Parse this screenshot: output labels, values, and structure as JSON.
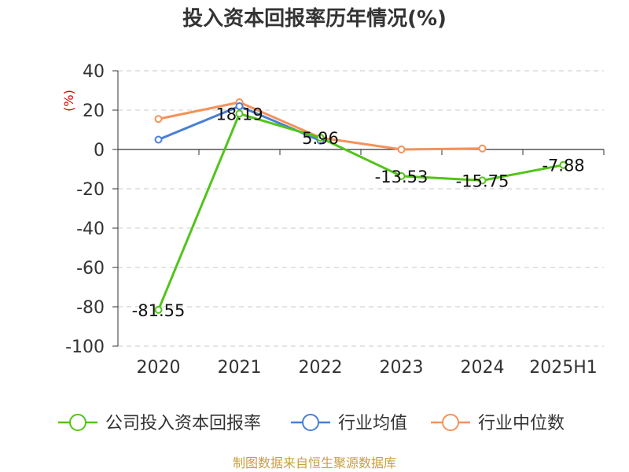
{
  "chart_data": {
    "type": "line",
    "title": "投入资本回报率历年情况(%)",
    "unit_label": "(%)",
    "categories": [
      "2020",
      "2021",
      "2022",
      "2023",
      "2024",
      "2025H1"
    ],
    "y_ticks": [
      "40",
      "20",
      "0",
      "-20",
      "-40",
      "-60",
      "-80",
      "-100"
    ],
    "ylim": [
      -100,
      40
    ],
    "grid": true,
    "legend_position": "bottom",
    "series": [
      {
        "name": "公司投入资本回报率",
        "color": "#52c41a",
        "values": [
          -81.55,
          18.19,
          5.96,
          -13.53,
          -15.75,
          -7.88
        ],
        "labels": [
          "-81.55",
          "18.19",
          "5.96",
          "-13.53",
          "-15.75",
          "-7.88"
        ]
      },
      {
        "name": "行业均值",
        "color": "#4a7fd4",
        "values": [
          5,
          22,
          4.5,
          null,
          null,
          null
        ]
      },
      {
        "name": "行业中位数",
        "color": "#f4925a",
        "values": [
          15.5,
          24,
          6,
          0,
          0.5,
          null
        ]
      }
    ]
  },
  "footer": "制图数据来自恒生聚源数据库"
}
